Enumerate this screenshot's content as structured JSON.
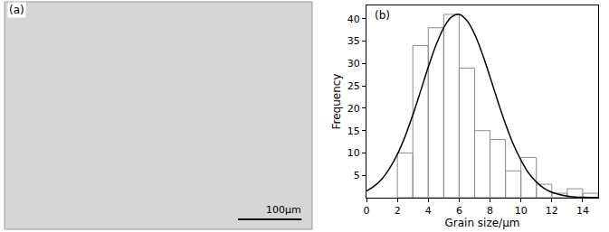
{
  "chart_data": {
    "type": "histogram",
    "xlabel": "Grain size/μm",
    "ylabel": "Frequency",
    "annotations": [
      "(b)"
    ],
    "bins": [
      2,
      3,
      4,
      5,
      6,
      7,
      8,
      9,
      10,
      11,
      12,
      13,
      14,
      15
    ],
    "values": [
      10,
      34,
      38,
      41,
      29,
      15,
      13,
      6,
      9,
      3,
      1,
      2,
      1
    ],
    "color": "#8c8c8c",
    "series": [
      {
        "type": "line",
        "color": "#000000",
        "x": [
          0,
          0.5,
          1,
          1.5,
          2,
          2.5,
          3,
          3.5,
          4,
          4.5,
          5,
          5.5,
          6,
          6.5,
          7,
          7.5,
          8,
          8.5,
          9,
          9.5,
          10,
          10.5,
          11,
          11.5,
          12,
          12.5,
          13,
          13.5,
          14,
          14.5,
          15
        ],
        "values": [
          1.5,
          2.6,
          4.2,
          6.6,
          9.7,
          13.7,
          18.5,
          23.8,
          29.2,
          34.1,
          38.0,
          40.4,
          41.0,
          39.6,
          36.6,
          32.2,
          27.0,
          21.6,
          16.5,
          12.0,
          8.4,
          5.5,
          3.5,
          2.1,
          1.2,
          0.7,
          0.35,
          0.17,
          0.08,
          0.04,
          0.02
        ]
      }
    ],
    "xlim": [
      0,
      15
    ],
    "xticks": [
      0,
      2,
      4,
      6,
      8,
      10,
      12,
      14
    ],
    "ylim": [
      0,
      43
    ],
    "yticks": [
      5,
      10,
      15,
      20,
      25,
      30,
      35,
      40
    ],
    "grid": false
  },
  "image_panel": {
    "label": "(a)",
    "scale_bar": "100μm"
  }
}
